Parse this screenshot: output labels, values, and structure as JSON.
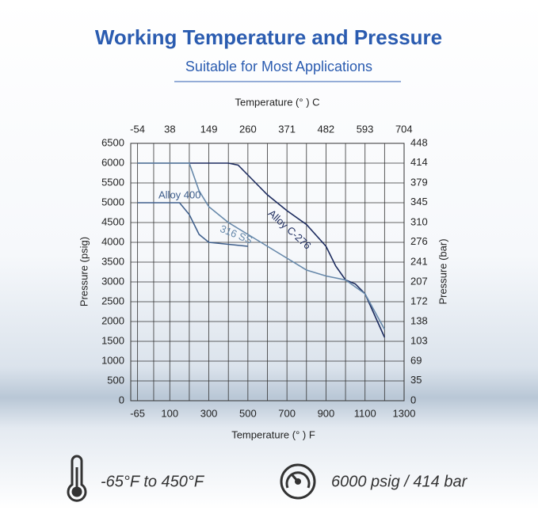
{
  "chart_data": {
    "type": "line",
    "title": "Working Temperature and Pressure",
    "subtitle": "Suitable for Most Applications",
    "xlabel": "Temperature (°  )  F",
    "x2label": "Temperature (°  )  C",
    "ylabel": "Pressure (psig)",
    "y2label": "Pressure (bar)",
    "xlim": [
      -100,
      1300
    ],
    "xticks": [
      -65,
      100,
      300,
      500,
      700,
      900,
      1100,
      1300
    ],
    "x2ticks": [
      -54,
      38,
      149,
      260,
      371,
      482,
      593,
      704
    ],
    "ylim": [
      0,
      6500
    ],
    "yticks": [
      0,
      500,
      1000,
      1500,
      2000,
      2500,
      3000,
      3500,
      4000,
      4500,
      5000,
      5500,
      6000,
      6500
    ],
    "y2lim": [
      0,
      448
    ],
    "y2ticks": [
      0,
      35,
      69,
      103,
      138,
      172,
      207,
      241,
      276,
      310,
      345,
      379,
      414,
      448
    ],
    "grid": true,
    "series": [
      {
        "name": "Alloy C-276",
        "color": "#1c2b5e",
        "x": [
          -65,
          400,
          450,
          500,
          600,
          700,
          800,
          900,
          950,
          1000,
          1050,
          1100,
          1200
        ],
        "values": [
          6000,
          6000,
          5950,
          5700,
          5200,
          4800,
          4450,
          3900,
          3400,
          3050,
          2950,
          2700,
          1600
        ]
      },
      {
        "name": "316 SS",
        "color": "#6688aa",
        "x": [
          -65,
          200,
          250,
          300,
          400,
          500,
          600,
          700,
          800,
          900,
          1000,
          1100,
          1200
        ],
        "values": [
          6000,
          6000,
          5300,
          4900,
          4500,
          4200,
          3900,
          3600,
          3300,
          3150,
          3050,
          2700,
          1800
        ]
      },
      {
        "name": "Alloy 400",
        "color": "#3f5f8c",
        "x": [
          -65,
          150,
          200,
          250,
          300,
          400,
          500
        ],
        "values": [
          5000,
          5000,
          4700,
          4200,
          4000,
          3950,
          3900
        ]
      }
    ],
    "features": [
      "-65°F to 450°F",
      "6000 psig / 414 bar"
    ]
  }
}
